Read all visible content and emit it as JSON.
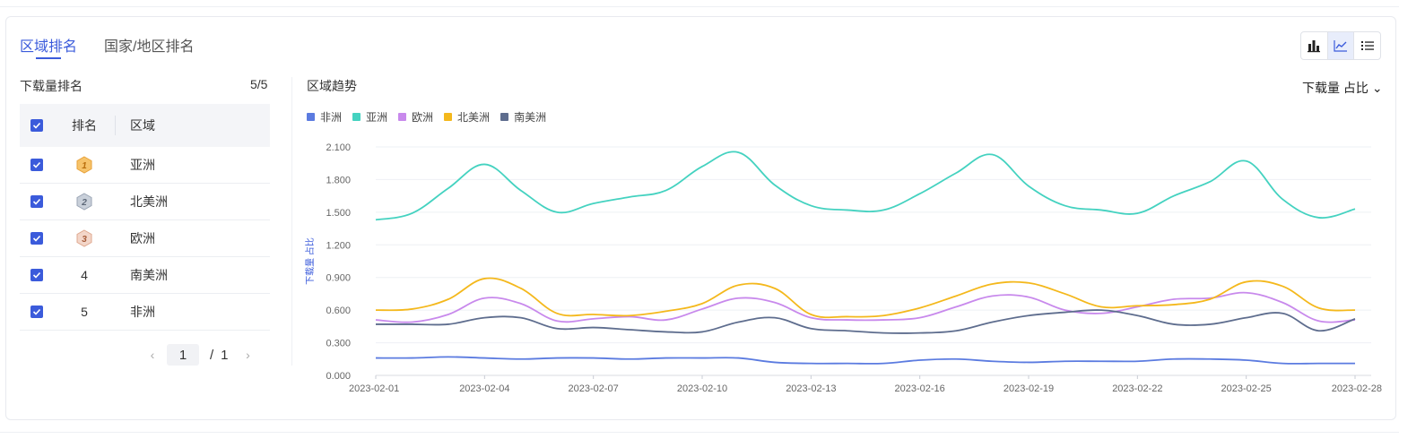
{
  "tabs": [
    {
      "label": "区域排名",
      "active": true
    },
    {
      "label": "国家/地区排名",
      "active": false
    }
  ],
  "view_switch": {
    "icons": [
      "bar-chart-icon",
      "line-chart-icon",
      "list-icon"
    ],
    "active": "line-chart-icon"
  },
  "ranking": {
    "title": "下载量排名",
    "count": "5/5",
    "columns": [
      "排名",
      "区域"
    ],
    "rows": [
      {
        "rank": "1",
        "medal": "gold",
        "region": "亚洲",
        "checked": true
      },
      {
        "rank": "2",
        "medal": "silver",
        "region": "北美洲",
        "checked": true
      },
      {
        "rank": "3",
        "medal": "bronze",
        "region": "欧洲",
        "checked": true
      },
      {
        "rank": "4",
        "medal": "",
        "region": "南美洲",
        "checked": true
      },
      {
        "rank": "5",
        "medal": "",
        "region": "非洲",
        "checked": true
      }
    ],
    "pager": {
      "prev": "‹",
      "current": "1",
      "separator": "/",
      "total": "1",
      "next": "›"
    }
  },
  "trend": {
    "title": "区域趋势",
    "metric": "下载量 占比",
    "metric_arrow": "⌄"
  },
  "colors": {
    "accent": "#3b5bdb",
    "非洲": "#5b7be0",
    "亚洲": "#44d2c0",
    "欧洲": "#c889ec",
    "北美洲": "#f4b81c",
    "南美洲": "#5e6d8e"
  },
  "chart_data": {
    "type": "line",
    "ylabel": "下载量 占比",
    "ylim": [
      0,
      2.1
    ],
    "yticks": [
      "0.000",
      "0.300",
      "0.600",
      "0.900",
      "1.200",
      "1.500",
      "1.800",
      "2.100"
    ],
    "x": [
      "2023-02-01",
      "2023-02-02",
      "2023-02-03",
      "2023-02-04",
      "2023-02-05",
      "2023-02-06",
      "2023-02-07",
      "2023-02-08",
      "2023-02-09",
      "2023-02-10",
      "2023-02-11",
      "2023-02-12",
      "2023-02-13",
      "2023-02-14",
      "2023-02-15",
      "2023-02-16",
      "2023-02-17",
      "2023-02-18",
      "2023-02-19",
      "2023-02-20",
      "2023-02-21",
      "2023-02-22",
      "2023-02-23",
      "2023-02-24",
      "2023-02-25",
      "2023-02-26",
      "2023-02-27",
      "2023-02-28"
    ],
    "xticks": [
      "2023-02-01",
      "2023-02-04",
      "2023-02-07",
      "2023-02-10",
      "2023-02-13",
      "2023-02-16",
      "2023-02-19",
      "2023-02-22",
      "2023-02-25",
      "2023-02-28"
    ],
    "legend_position": "top-left",
    "grid": true,
    "series": [
      {
        "name": "非洲",
        "values": [
          0.16,
          0.16,
          0.17,
          0.16,
          0.15,
          0.16,
          0.16,
          0.15,
          0.16,
          0.16,
          0.16,
          0.12,
          0.11,
          0.11,
          0.11,
          0.14,
          0.15,
          0.13,
          0.12,
          0.13,
          0.13,
          0.13,
          0.15,
          0.15,
          0.14,
          0.11,
          0.11,
          0.11
        ]
      },
      {
        "name": "亚洲",
        "values": [
          1.43,
          1.49,
          1.72,
          1.94,
          1.7,
          1.5,
          1.58,
          1.64,
          1.7,
          1.92,
          2.05,
          1.75,
          1.56,
          1.52,
          1.52,
          1.67,
          1.86,
          2.03,
          1.74,
          1.56,
          1.52,
          1.49,
          1.65,
          1.78,
          1.97,
          1.62,
          1.45,
          1.53
        ]
      },
      {
        "name": "欧洲",
        "values": [
          0.51,
          0.49,
          0.56,
          0.71,
          0.66,
          0.5,
          0.52,
          0.54,
          0.51,
          0.61,
          0.71,
          0.67,
          0.53,
          0.51,
          0.51,
          0.53,
          0.63,
          0.73,
          0.72,
          0.6,
          0.57,
          0.63,
          0.7,
          0.71,
          0.76,
          0.67,
          0.5,
          0.51
        ]
      },
      {
        "name": "北美洲",
        "values": [
          0.6,
          0.61,
          0.7,
          0.89,
          0.8,
          0.57,
          0.56,
          0.55,
          0.59,
          0.66,
          0.83,
          0.8,
          0.56,
          0.54,
          0.55,
          0.62,
          0.73,
          0.84,
          0.85,
          0.75,
          0.63,
          0.64,
          0.65,
          0.7,
          0.86,
          0.82,
          0.62,
          0.6
        ]
      },
      {
        "name": "南美洲",
        "values": [
          0.47,
          0.47,
          0.47,
          0.53,
          0.53,
          0.43,
          0.44,
          0.42,
          0.4,
          0.4,
          0.49,
          0.53,
          0.43,
          0.41,
          0.39,
          0.39,
          0.41,
          0.49,
          0.55,
          0.58,
          0.6,
          0.55,
          0.47,
          0.47,
          0.53,
          0.57,
          0.41,
          0.52
        ]
      }
    ]
  }
}
